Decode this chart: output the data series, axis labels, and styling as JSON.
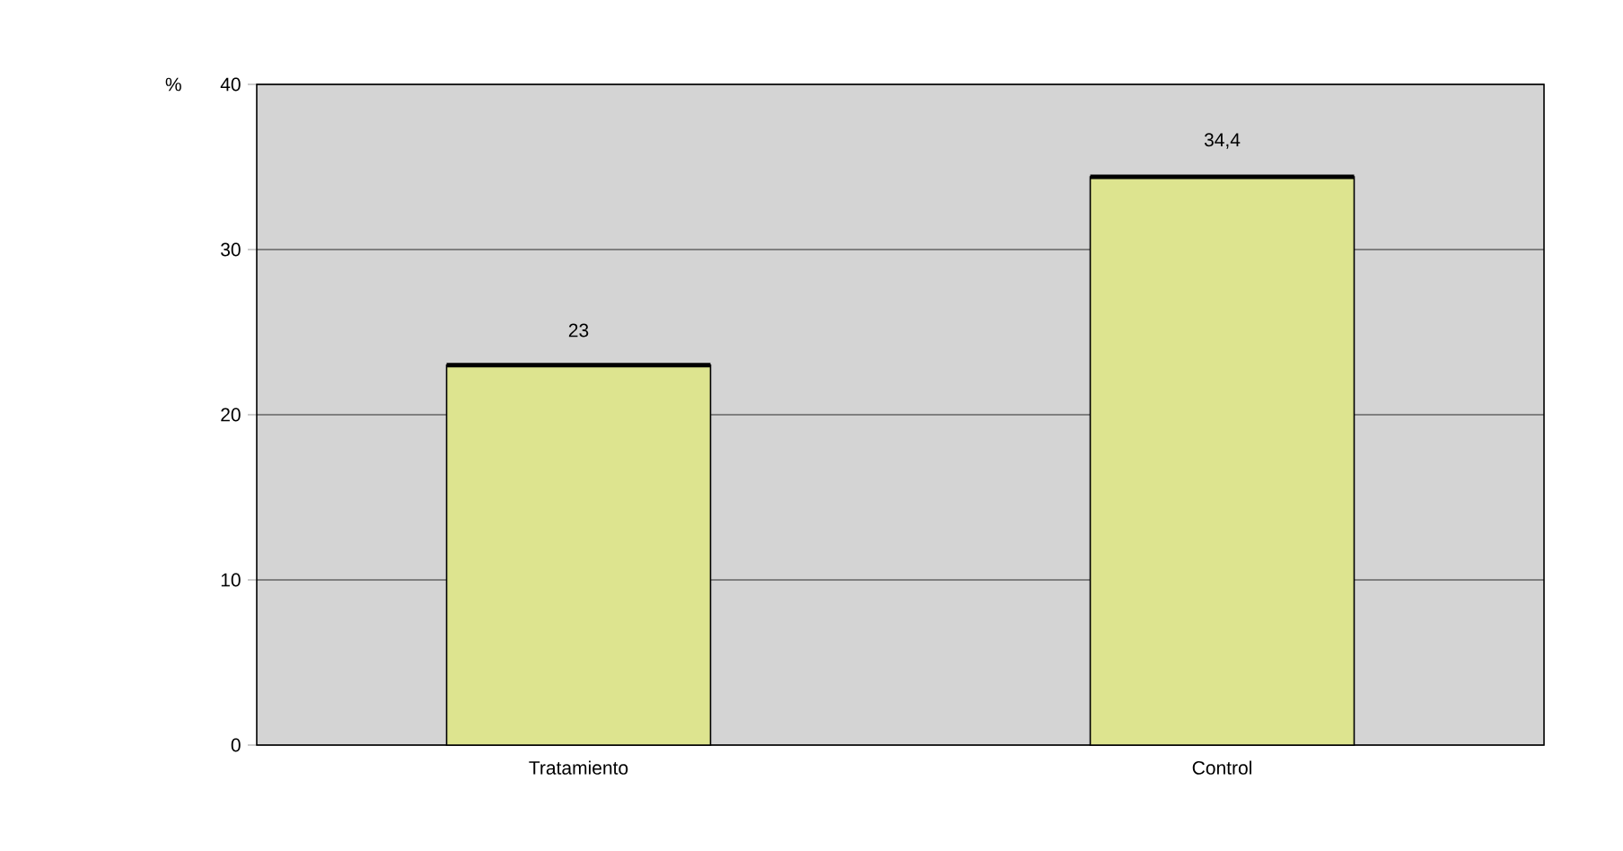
{
  "chart_data": {
    "type": "bar",
    "ylabel": "%",
    "categories": [
      "Tratamiento",
      "Control"
    ],
    "values": [
      23,
      34.4
    ],
    "value_labels": [
      "23",
      "34,4"
    ],
    "color": "#dde48f",
    "ylim": [
      0,
      40
    ],
    "yticks": [
      0,
      10,
      20,
      30,
      40
    ],
    "grid": "y"
  }
}
